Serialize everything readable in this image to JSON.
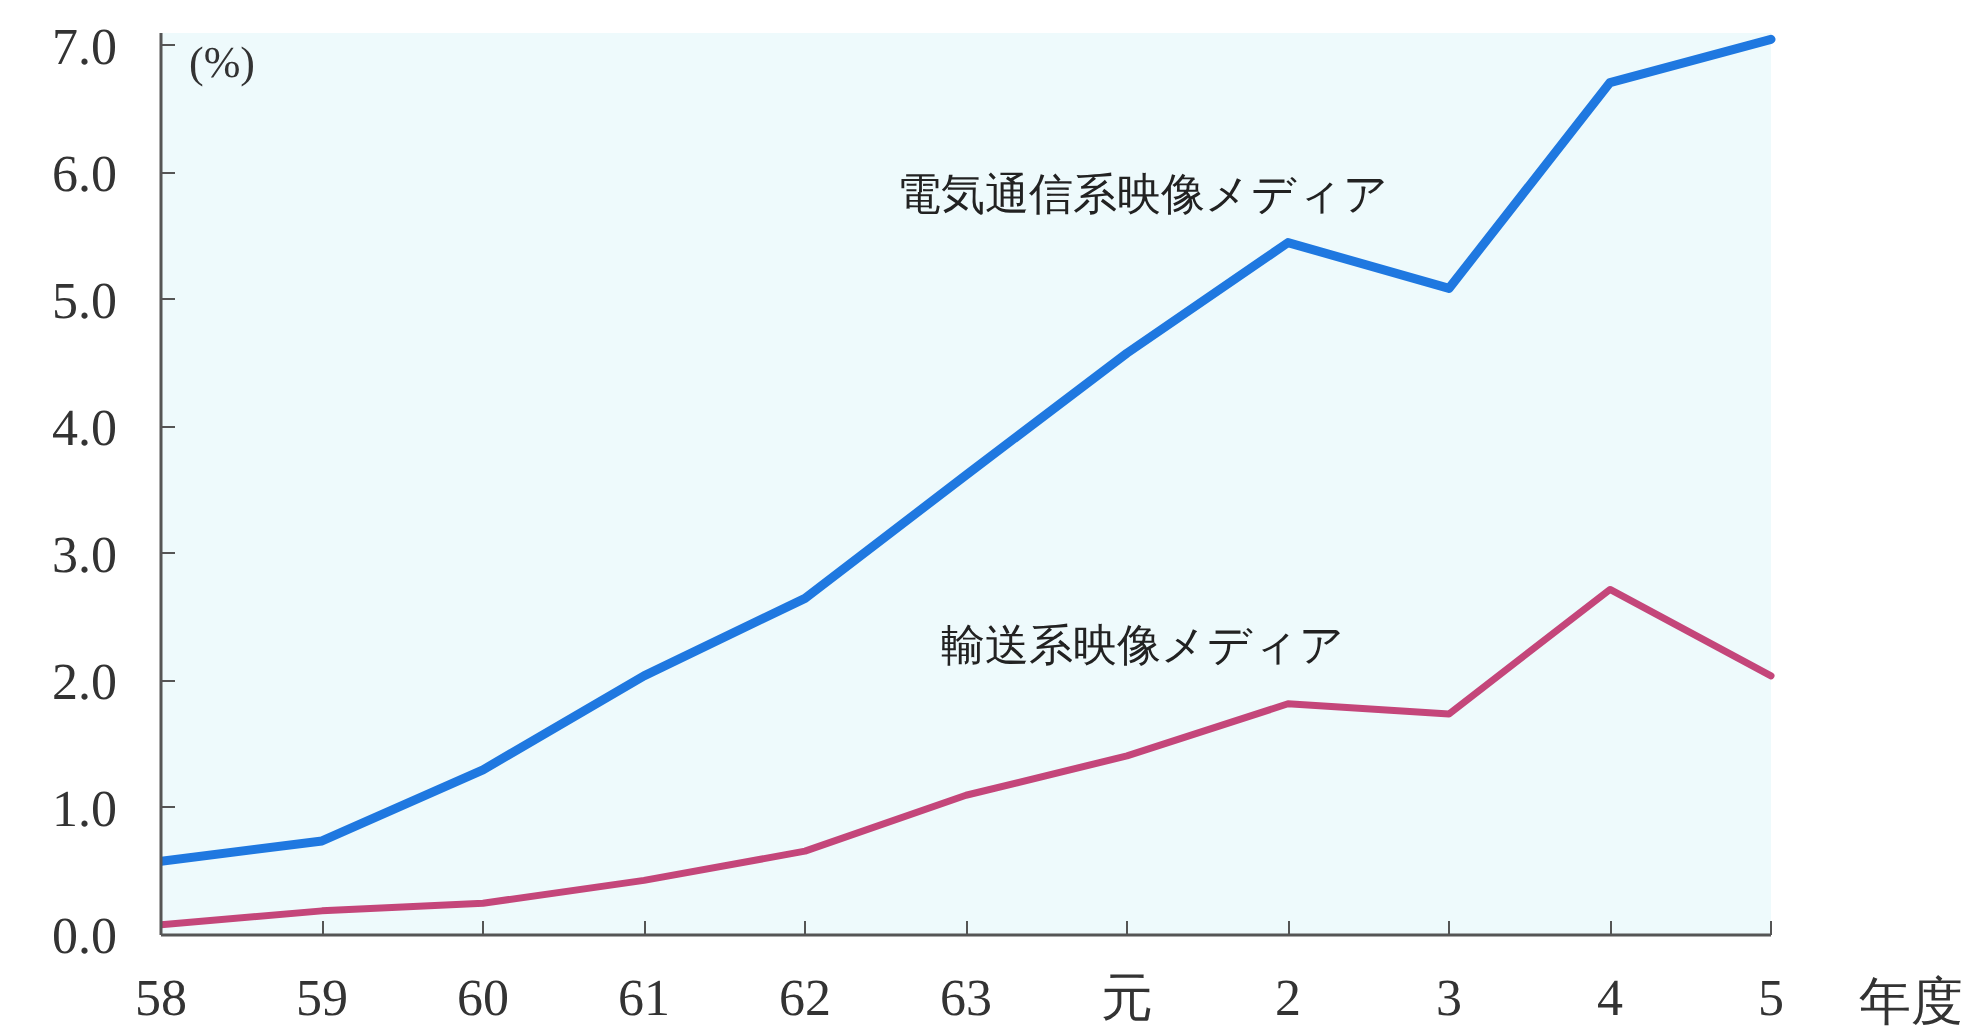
{
  "chart_data": {
    "type": "line",
    "ylabel": "(%)",
    "xlabel": "年度",
    "categories": [
      "58",
      "59",
      "60",
      "61",
      "62",
      "63",
      "元",
      "2",
      "3",
      "4",
      "5"
    ],
    "series": [
      {
        "name": "電気通信系映像メディア",
        "color": "#1f78e0",
        "values": [
          0.58,
          0.74,
          1.3,
          2.04,
          2.65,
          3.62,
          4.58,
          5.45,
          5.09,
          6.71,
          7.05
        ]
      },
      {
        "name": "輸送系映像メディア",
        "color": "#c4467a",
        "values": [
          0.08,
          0.19,
          0.25,
          0.43,
          0.66,
          1.1,
          1.41,
          1.82,
          1.74,
          2.72,
          2.04
        ]
      }
    ],
    "ylim": [
      0,
      7.1
    ],
    "yticks": [
      {
        "value": 0,
        "label": "0.0"
      },
      {
        "value": 1,
        "label": "1.0"
      },
      {
        "value": 2,
        "label": "2.0"
      },
      {
        "value": 3,
        "label": "3.0"
      },
      {
        "value": 4,
        "label": "4.0"
      },
      {
        "value": 5,
        "label": "5.0"
      },
      {
        "value": 6,
        "label": "6.0"
      },
      {
        "value": 7,
        "label": "7.0"
      }
    ],
    "line_style": "solid",
    "marker": "none"
  }
}
